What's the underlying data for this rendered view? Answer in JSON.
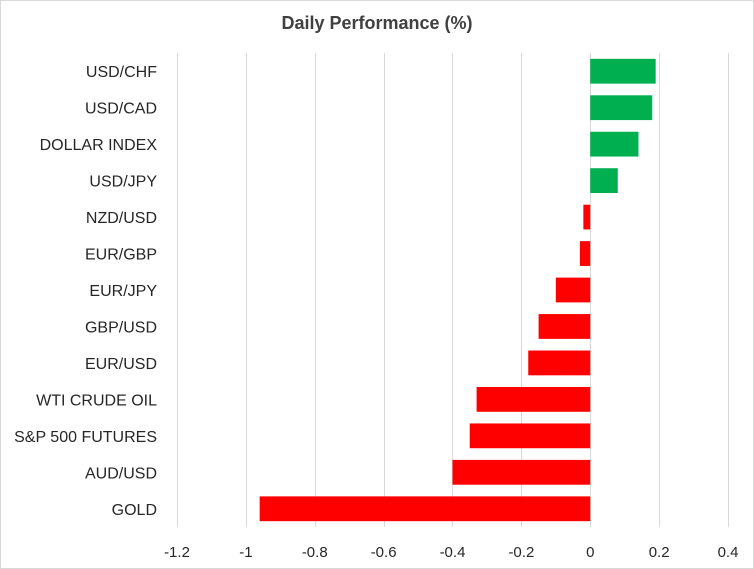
{
  "chart_data": {
    "type": "bar",
    "orientation": "horizontal",
    "title": "Daily Performance (%)",
    "xlabel": "",
    "ylabel": "",
    "categories": [
      "USD/CHF",
      "USD/CAD",
      "DOLLAR INDEX",
      "USD/JPY",
      "NZD/USD",
      "EUR/GBP",
      "EUR/JPY",
      "GBP/USD",
      "EUR/USD",
      "WTI CRUDE OIL",
      "S&P 500 FUTURES",
      "AUD/USD",
      "GOLD"
    ],
    "values": [
      0.19,
      0.18,
      0.14,
      0.08,
      -0.02,
      -0.03,
      -0.1,
      -0.15,
      -0.18,
      -0.33,
      -0.35,
      -0.4,
      -0.96
    ],
    "xlim": [
      -1.2,
      0.4
    ],
    "xticks": [
      "-1.2",
      "-1",
      "-0.8",
      "-0.6",
      "-0.4",
      "-0.2",
      "0",
      "0.2",
      "0.4"
    ],
    "xtick_values": [
      -1.2,
      -1.0,
      -0.8,
      -0.6,
      -0.4,
      -0.2,
      0,
      0.2,
      0.4
    ],
    "grid": "vertical",
    "legend": "none",
    "colors": {
      "positive": "#00b050",
      "negative": "#ff0000",
      "grid": "#d9d9d9"
    }
  }
}
